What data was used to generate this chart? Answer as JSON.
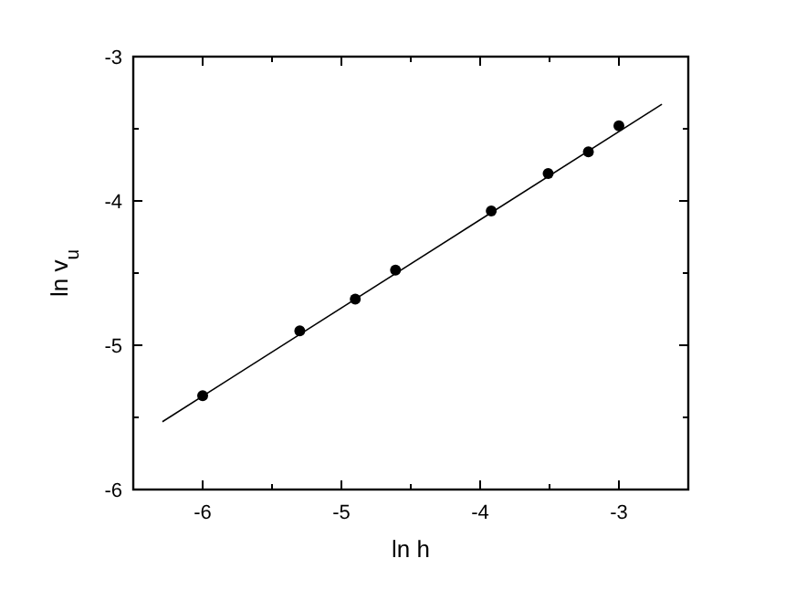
{
  "chart_data": {
    "type": "scatter",
    "xlabel": "ln h",
    "ylabel": "ln v$_{u}$",
    "xlim": [
      -6.5,
      -2.5
    ],
    "ylim": [
      -6,
      -3
    ],
    "xticks": [
      {
        "value": -6.5,
        "label": null
      },
      -6,
      {
        "value": -5.5,
        "label": null
      },
      -5,
      {
        "value": -4.5,
        "label": null
      },
      -4,
      {
        "value": -3.5,
        "label": null
      },
      -3,
      {
        "value": -2.5,
        "label": null
      }
    ],
    "yticks": [
      -6,
      {
        "value": -5.5,
        "label": null
      },
      -5,
      {
        "value": -4.5,
        "label": null
      },
      -4,
      {
        "value": -3.5,
        "label": null
      },
      -3
    ],
    "marker": "circle",
    "grid": false,
    "series": [
      {
        "color": "#000000",
        "x": [
          -6,
          -5.3,
          -4.9,
          -4.61,
          -3.92,
          -3.51,
          -3.22,
          -3
        ],
        "values": [
          -5.35,
          -4.9,
          -4.68,
          -4.48,
          -4.07,
          -3.81,
          -3.66,
          -3.48
        ]
      },
      {
        "type": "line",
        "color": "#000000",
        "marker": "none",
        "x": [
          -6.29,
          -2.69
        ],
        "values": [
          -5.53,
          -3.33
        ]
      }
    ]
  }
}
